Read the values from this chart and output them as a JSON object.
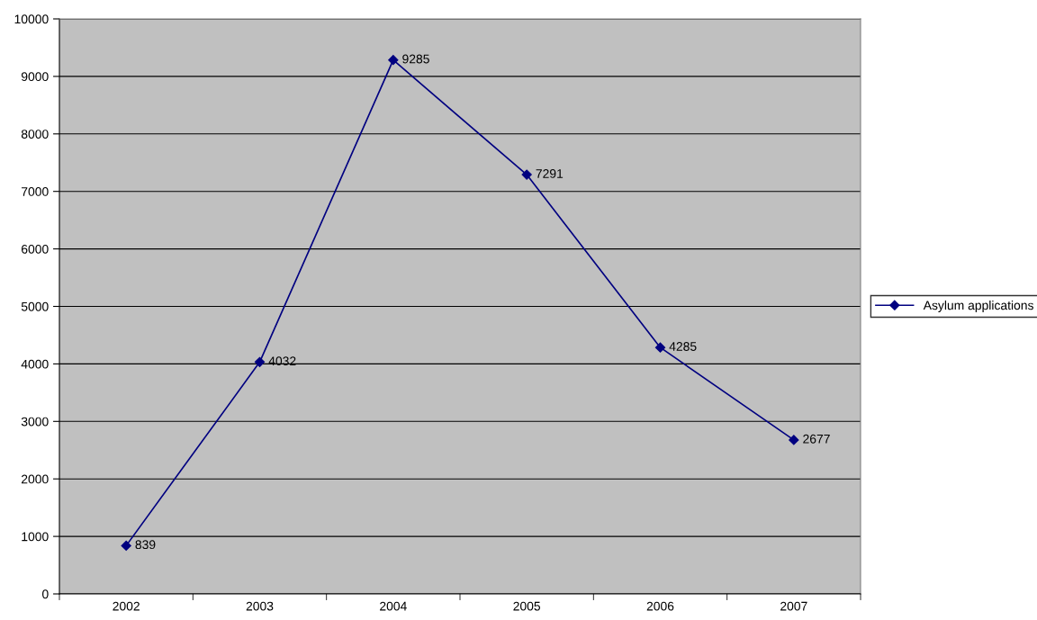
{
  "chart_data": {
    "type": "line",
    "categories": [
      "2002",
      "2003",
      "2004",
      "2005",
      "2006",
      "2007"
    ],
    "series": [
      {
        "name": "Asylum applications",
        "color": "#000080",
        "values": [
          839,
          4032,
          9285,
          7291,
          4285,
          2677
        ]
      }
    ],
    "ylim": [
      0,
      10000
    ],
    "yticks": [
      0,
      1000,
      2000,
      3000,
      4000,
      5000,
      6000,
      7000,
      8000,
      9000,
      10000
    ],
    "grid": "y",
    "legend": "right",
    "marker": "diamond",
    "line_style": "solid",
    "data_labels": true
  }
}
